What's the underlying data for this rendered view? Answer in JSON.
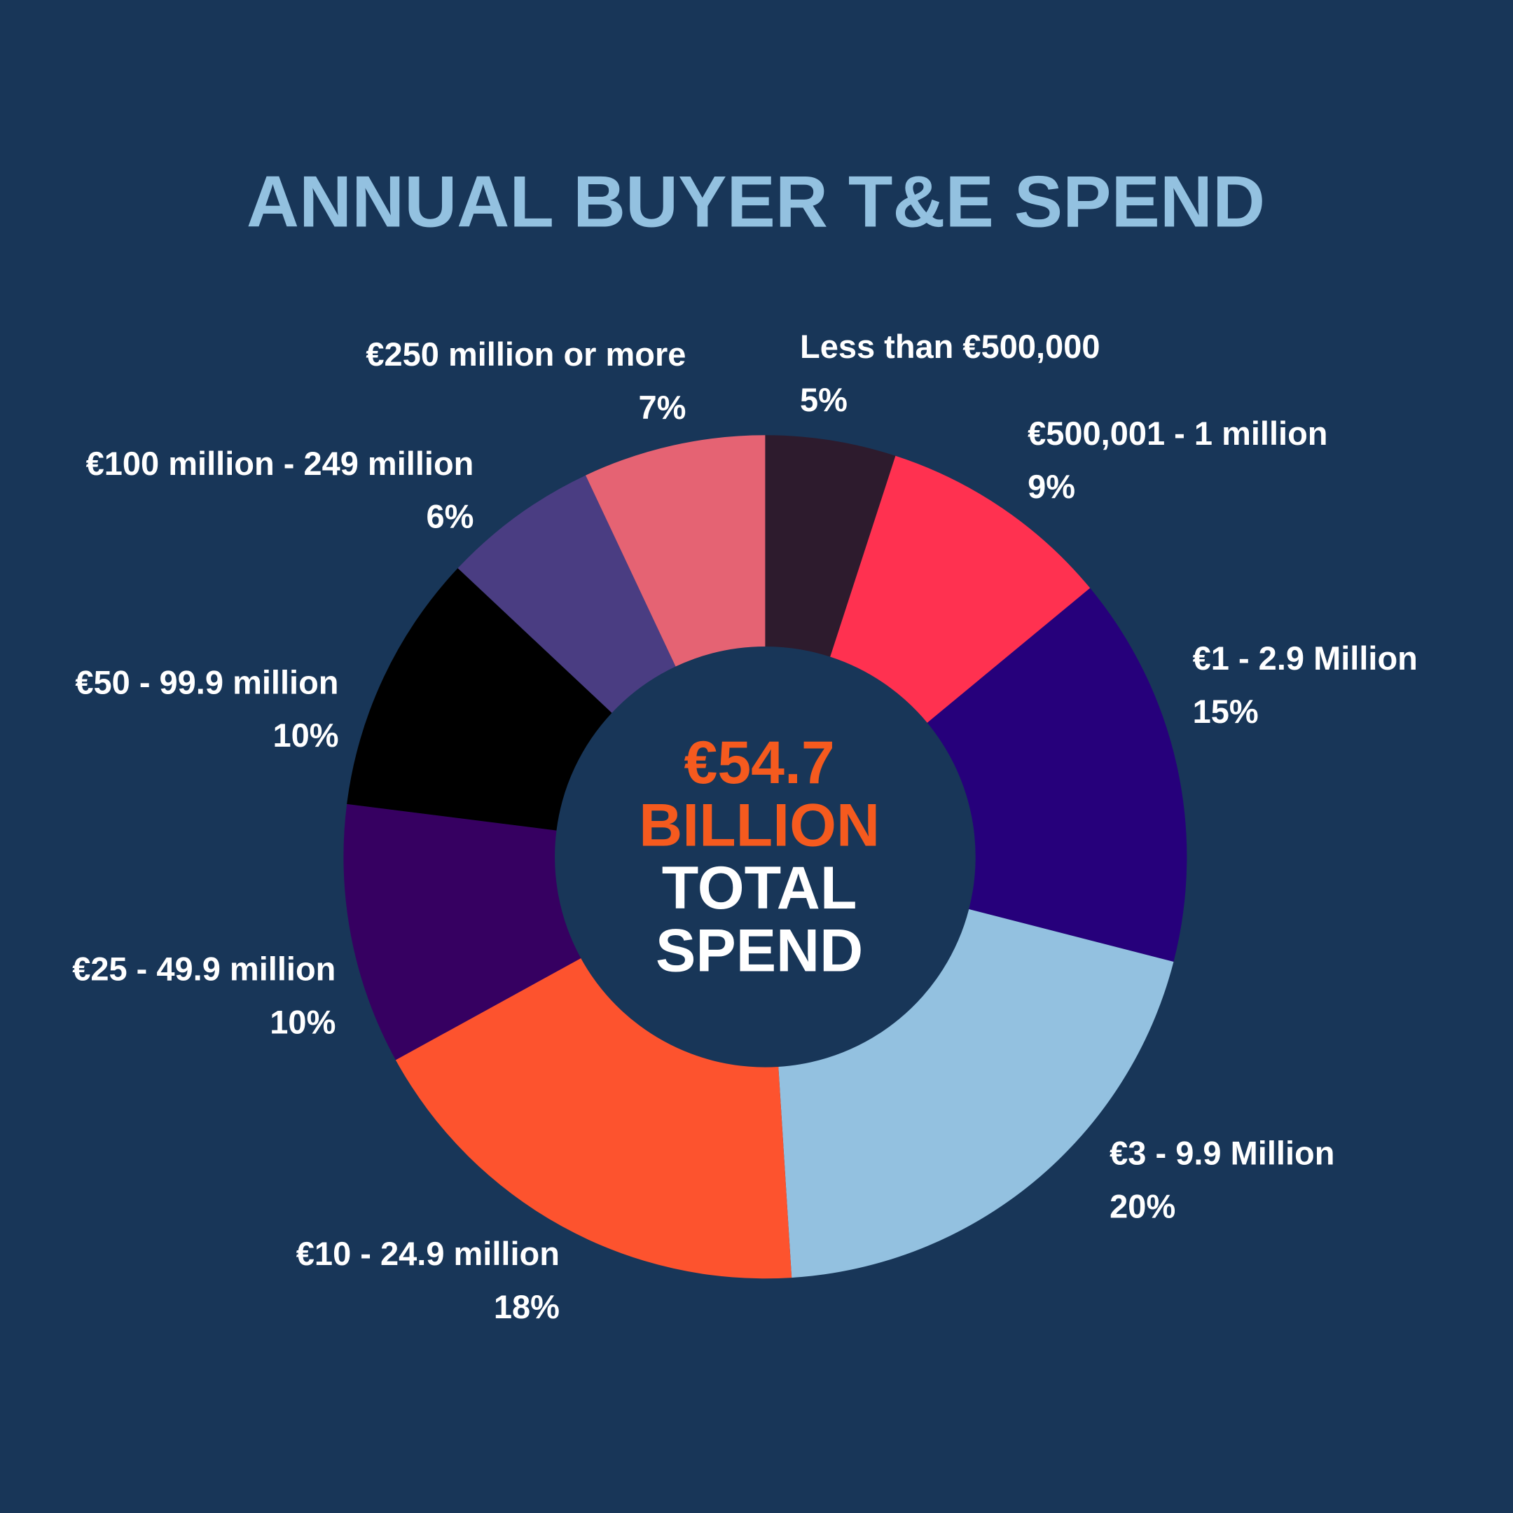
{
  "chart_data": {
    "type": "donut",
    "title": "ANNUAL BUYER T&E SPEND",
    "categories": [
      "Less than €500,000",
      "€500,001 - 1 million",
      "€1 - 2.9 Million",
      "€3 - 9.9 Million",
      "€10 - 24.9 million",
      "€25 - 49.9 million",
      "€50 - 99.9 million",
      "€100 million - 249 million",
      "€250 million or more"
    ],
    "values": [
      5,
      9,
      15,
      20,
      18,
      10,
      10,
      6,
      7
    ],
    "value_labels": [
      "5%",
      "9%",
      "15%",
      "20%",
      "18%",
      "10%",
      "10%",
      "6%",
      "7%"
    ],
    "colors": [
      "#2d1b2d",
      "#ff3150",
      "#26007b",
      "#93c1e0",
      "#fd532e",
      "#360061",
      "#000000",
      "#4a3d82",
      "#e56373"
    ],
    "center_text": [
      "€54.7",
      "BILLION",
      "TOTAL",
      "SPEND"
    ]
  }
}
